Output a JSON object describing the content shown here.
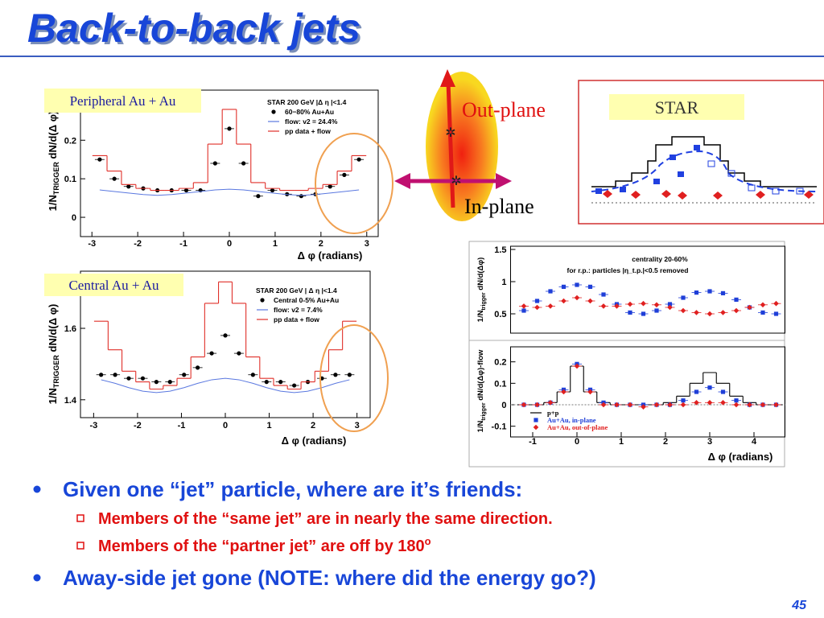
{
  "title": "Back-to-back jets",
  "page_number": "45",
  "diagram": {
    "out_plane": "Out-plane",
    "in_plane": "In-plane",
    "star_label": "STAR"
  },
  "bullets": [
    {
      "text": "Given one “jet” particle, where are it’s friends:",
      "sub": [
        "Members of the “same jet” are in nearly the same direction.",
        "Members of the “partner jet” are off by 180"
      ],
      "degree_mark": "o"
    },
    {
      "text": "Away-side jet gone (NOTE: where did the energy go?)"
    }
  ],
  "chart_data": [
    {
      "type": "scatter",
      "label": "Peripheral Au + Au",
      "legend_title": "STAR 200 GeV |Δ η |<1.4",
      "x_label": "Δ φ (radians)",
      "y_label": {
        "main": "1/N",
        "sub": "TRIGGER",
        "rest": " dN/d(Δ φ)"
      },
      "x": [
        -2.83,
        -2.51,
        -2.2,
        -1.88,
        -1.57,
        -1.26,
        -0.94,
        -0.63,
        -0.31,
        0,
        0.31,
        0.63,
        0.94,
        1.26,
        1.57,
        1.88,
        2.2,
        2.51,
        2.83
      ],
      "xlim": [
        -3.25,
        3.25
      ],
      "xticks": [
        -3,
        -2,
        -1,
        0,
        1,
        2,
        3
      ],
      "ylim": [
        -0.05,
        0.33
      ],
      "yticks": [
        0,
        0.1,
        0.2
      ],
      "series": [
        {
          "name": "60−80% Au+Au",
          "color": "#000000",
          "style": "points",
          "marker": "circle",
          "values": [
            0.15,
            0.1,
            0.08,
            0.075,
            0.07,
            0.07,
            0.07,
            0.07,
            0.14,
            0.23,
            0.14,
            0.055,
            0.07,
            0.06,
            0.055,
            0.06,
            0.08,
            0.11,
            0.15
          ]
        },
        {
          "name": "flow: v2 = 24.4%",
          "color": "#5a78e0",
          "style": "line",
          "values": [
            0.071,
            0.067,
            0.063,
            0.059,
            0.057,
            0.059,
            0.063,
            0.067,
            0.071,
            0.073,
            0.071,
            0.067,
            0.063,
            0.059,
            0.057,
            0.059,
            0.063,
            0.067,
            0.071
          ]
        },
        {
          "name": "pp data + flow",
          "color": "#e0302a",
          "style": "step",
          "values": [
            0.16,
            0.12,
            0.085,
            0.075,
            0.07,
            0.07,
            0.075,
            0.09,
            0.19,
            0.28,
            0.19,
            0.09,
            0.075,
            0.07,
            0.07,
            0.075,
            0.085,
            0.12,
            0.16
          ]
        }
      ]
    },
    {
      "type": "scatter",
      "label": "Central Au + Au",
      "legend_title": "STAR 200 GeV | Δ η |<1.4",
      "x_label": "Δ φ (radians)",
      "y_label": {
        "main": "1/N",
        "sub": "TRIGGER",
        "rest": " dN/d(Δ φ)"
      },
      "x": [
        -2.83,
        -2.51,
        -2.2,
        -1.88,
        -1.57,
        -1.26,
        -0.94,
        -0.63,
        -0.31,
        0,
        0.31,
        0.63,
        0.94,
        1.26,
        1.57,
        1.88,
        2.2,
        2.51,
        2.83
      ],
      "xlim": [
        -3.3,
        3.3
      ],
      "xticks": [
        -3,
        -2,
        -1,
        0,
        1,
        2,
        3
      ],
      "ylim": [
        1.35,
        1.76
      ],
      "yticks": [
        1.4,
        1.6
      ],
      "series": [
        {
          "name": "Central 0-5% Au+Au",
          "color": "#000000",
          "style": "points",
          "marker": "circle",
          "values": [
            1.47,
            1.47,
            1.46,
            1.46,
            1.45,
            1.45,
            1.47,
            1.49,
            1.53,
            1.58,
            1.53,
            1.47,
            1.45,
            1.45,
            1.44,
            1.45,
            1.46,
            1.47,
            1.47
          ]
        },
        {
          "name": "flow: v2 = 7.4%",
          "color": "#5a78e0",
          "style": "line",
          "values": [
            1.456,
            1.446,
            1.434,
            1.424,
            1.42,
            1.424,
            1.434,
            1.446,
            1.456,
            1.46,
            1.456,
            1.446,
            1.434,
            1.424,
            1.42,
            1.424,
            1.434,
            1.446,
            1.456
          ]
        },
        {
          "name": "pp data + flow",
          "color": "#e0302a",
          "style": "step",
          "values": [
            1.62,
            1.54,
            1.48,
            1.45,
            1.43,
            1.44,
            1.46,
            1.52,
            1.67,
            1.73,
            1.67,
            1.52,
            1.46,
            1.44,
            1.43,
            1.45,
            1.48,
            1.54,
            1.62
          ]
        }
      ]
    },
    {
      "type": "scatter",
      "annotations": [
        "centrality 20-60%",
        "for r.p.: particles |η_t.p.|<0.5 removed"
      ],
      "y_label": {
        "main": "1/N",
        "sub": "trigger",
        "rest": " dN/d(Δφ)"
      },
      "x": [
        -1.2,
        -0.9,
        -0.6,
        -0.3,
        0,
        0.3,
        0.6,
        0.9,
        1.2,
        1.5,
        1.8,
        2.1,
        2.4,
        2.7,
        3.0,
        3.3,
        3.6,
        3.9,
        4.2,
        4.5
      ],
      "xlim": [
        -1.5,
        4.7
      ],
      "ylim": [
        0.2,
        1.55
      ],
      "yticks": [
        0.5,
        1,
        1.5
      ],
      "series": [
        {
          "color": "#1f3fd8",
          "style": "points",
          "marker": "square",
          "values": [
            0.55,
            0.7,
            0.85,
            0.92,
            0.95,
            0.92,
            0.8,
            0.65,
            0.52,
            0.5,
            0.55,
            0.65,
            0.75,
            0.83,
            0.85,
            0.82,
            0.72,
            0.6,
            0.52,
            0.5
          ]
        },
        {
          "color": "#e02020",
          "style": "points",
          "marker": "diamond",
          "values": [
            0.62,
            0.6,
            0.62,
            0.7,
            0.75,
            0.7,
            0.62,
            0.62,
            0.65,
            0.66,
            0.64,
            0.6,
            0.55,
            0.52,
            0.5,
            0.52,
            0.55,
            0.6,
            0.64,
            0.66
          ]
        }
      ]
    },
    {
      "type": "scatter",
      "x_label": "Δ φ (radians)",
      "y_label": {
        "main": "1/N",
        "sub": "trigger",
        "rest": " dN/d(Δφ)-flow"
      },
      "x": [
        -1.2,
        -0.9,
        -0.6,
        -0.3,
        0,
        0.3,
        0.6,
        0.9,
        1.2,
        1.5,
        1.8,
        2.1,
        2.4,
        2.7,
        3.0,
        3.3,
        3.6,
        3.9,
        4.2,
        4.5
      ],
      "xlim": [
        -1.5,
        4.7
      ],
      "xticks": [
        -1,
        0,
        1,
        2,
        3,
        4
      ],
      "ylim": [
        -0.15,
        0.27
      ],
      "yticks": [
        -0.1,
        0,
        0.1,
        0.2
      ],
      "series": [
        {
          "name": "p+p",
          "color": "#000000",
          "style": "step",
          "values": [
            0,
            0,
            0.01,
            0.06,
            0.18,
            0.06,
            0.01,
            0,
            0,
            0,
            0,
            0.01,
            0.04,
            0.1,
            0.15,
            0.1,
            0.04,
            0.01,
            0,
            0
          ]
        },
        {
          "name": "Au+Au, in-plane",
          "color": "#1f3fd8",
          "style": "points",
          "marker": "square",
          "values": [
            0,
            0,
            0.01,
            0.07,
            0.19,
            0.07,
            0.01,
            0,
            0,
            0,
            0,
            0,
            0.02,
            0.06,
            0.08,
            0.06,
            0.02,
            0,
            0,
            0
          ]
        },
        {
          "name": "Au+Au, out-of-plane",
          "color": "#e02020",
          "style": "points",
          "marker": "diamond",
          "values": [
            0,
            0,
            0.01,
            0.06,
            0.18,
            0.06,
            0,
            0,
            0,
            -0.01,
            0,
            0,
            0,
            0.01,
            0.01,
            0.01,
            0,
            0,
            0,
            0
          ]
        }
      ]
    }
  ]
}
